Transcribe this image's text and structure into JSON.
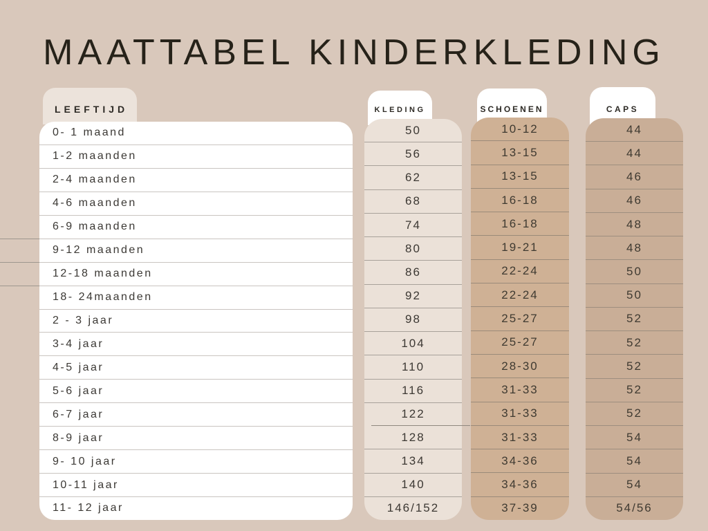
{
  "title": "MAATTABEL KINDERKLEDING",
  "table": {
    "age_column": {
      "header": "LEEFTIJD",
      "rows": [
        "0- 1 maand",
        "1-2 maanden",
        "2-4 maanden",
        "4-6 maanden",
        "6-9 maanden",
        "9-12 maanden",
        "12-18 maanden",
        "18- 24maanden",
        "2 - 3 jaar",
        "3-4 jaar",
        "4-5 jaar",
        "5-6 jaar",
        "6-7 jaar",
        "8-9 jaar",
        "9- 10 jaar",
        "10-11 jaar",
        "11- 12 jaar"
      ]
    },
    "size_columns": [
      {
        "header": "KLEDING",
        "rows": [
          "50",
          "56",
          "62",
          "68",
          "74",
          "80",
          "86",
          "92",
          "98",
          "104",
          "110",
          "116",
          "122",
          "128",
          "134",
          "140",
          "146/152"
        ]
      },
      {
        "header": "SCHOENEN",
        "rows": [
          "10-12",
          "13-15",
          "13-15",
          "16-18",
          "16-18",
          "19-21",
          "22-24",
          "22-24",
          "25-27",
          "25-27",
          "28-30",
          "31-33",
          "31-33",
          "31-33",
          "34-36",
          "34-36",
          "37-39"
        ]
      },
      {
        "header": "CAPS",
        "rows": [
          "44",
          "44",
          "46",
          "46",
          "48",
          "48",
          "50",
          "50",
          "52",
          "52",
          "52",
          "52",
          "52",
          "54",
          "54",
          "54",
          "54/56"
        ]
      }
    ]
  },
  "colors": {
    "background": "#d9c8bb",
    "age_tab": "#ece3db",
    "age_body": "#ffffff",
    "kleding_body": "#ebe1d8",
    "schoenen_body": "#cfb195",
    "caps_body": "#c9ae97",
    "title_text": "#262219",
    "row_text": "#3b3834"
  }
}
